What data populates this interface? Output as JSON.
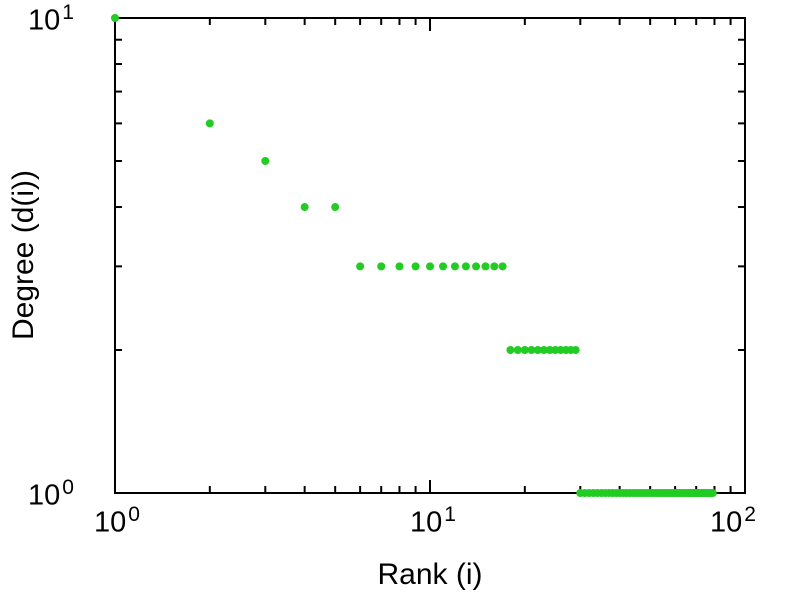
{
  "figure": {
    "background": "#ffffff",
    "axis_color": "#000000",
    "point_color": "#22cc22"
  },
  "axes": {
    "x": {
      "label": "Rank (i)",
      "scale": "log",
      "tick_labels": [
        {
          "base": "10",
          "exp": "0"
        },
        {
          "base": "10",
          "exp": "1"
        },
        {
          "base": "10",
          "exp": "2"
        }
      ]
    },
    "y": {
      "label": "Degree (d(i))",
      "scale": "log",
      "tick_labels": [
        {
          "base": "10",
          "exp": "0"
        },
        {
          "base": "10",
          "exp": "1"
        }
      ]
    }
  },
  "chart_data": {
    "type": "scatter",
    "title": "",
    "xlabel": "Rank (i)",
    "ylabel": "Degree (d(i))",
    "xscale": "log",
    "yscale": "log",
    "xlim": [
      1,
      100
    ],
    "ylim": [
      1,
      10
    ],
    "grid": false,
    "legend": null,
    "marker": "dot",
    "points": [
      [
        1,
        10
      ],
      [
        2,
        6
      ],
      [
        3,
        5
      ],
      [
        4,
        4
      ],
      [
        5,
        4
      ],
      [
        6,
        3
      ],
      [
        7,
        3
      ],
      [
        8,
        3
      ],
      [
        9,
        3
      ],
      [
        10,
        3
      ],
      [
        11,
        3
      ],
      [
        12,
        3
      ],
      [
        13,
        3
      ],
      [
        14,
        3
      ],
      [
        15,
        3
      ],
      [
        16,
        3
      ],
      [
        17,
        3
      ],
      [
        18,
        2
      ],
      [
        19,
        2
      ],
      [
        20,
        2
      ],
      [
        21,
        2
      ],
      [
        22,
        2
      ],
      [
        23,
        2
      ],
      [
        24,
        2
      ],
      [
        25,
        2
      ],
      [
        26,
        2
      ],
      [
        27,
        2
      ],
      [
        28,
        2
      ],
      [
        29,
        2
      ],
      [
        30,
        1
      ],
      [
        31,
        1
      ],
      [
        32,
        1
      ],
      [
        33,
        1
      ],
      [
        34,
        1
      ],
      [
        35,
        1
      ],
      [
        36,
        1
      ],
      [
        37,
        1
      ],
      [
        38,
        1
      ],
      [
        39,
        1
      ],
      [
        40,
        1
      ],
      [
        41,
        1
      ],
      [
        42,
        1
      ],
      [
        43,
        1
      ],
      [
        44,
        1
      ],
      [
        45,
        1
      ],
      [
        46,
        1
      ],
      [
        47,
        1
      ],
      [
        48,
        1
      ],
      [
        49,
        1
      ],
      [
        50,
        1
      ],
      [
        51,
        1
      ],
      [
        52,
        1
      ],
      [
        53,
        1
      ],
      [
        54,
        1
      ],
      [
        55,
        1
      ],
      [
        56,
        1
      ],
      [
        57,
        1
      ],
      [
        58,
        1
      ],
      [
        59,
        1
      ],
      [
        60,
        1
      ],
      [
        61,
        1
      ],
      [
        62,
        1
      ],
      [
        63,
        1
      ],
      [
        64,
        1
      ],
      [
        65,
        1
      ],
      [
        66,
        1
      ],
      [
        67,
        1
      ],
      [
        68,
        1
      ],
      [
        69,
        1
      ],
      [
        70,
        1
      ],
      [
        71,
        1
      ],
      [
        72,
        1
      ],
      [
        73,
        1
      ],
      [
        74,
        1
      ],
      [
        75,
        1
      ],
      [
        76,
        1
      ],
      [
        77,
        1
      ],
      [
        78,
        1
      ],
      [
        79,
        1
      ]
    ]
  }
}
